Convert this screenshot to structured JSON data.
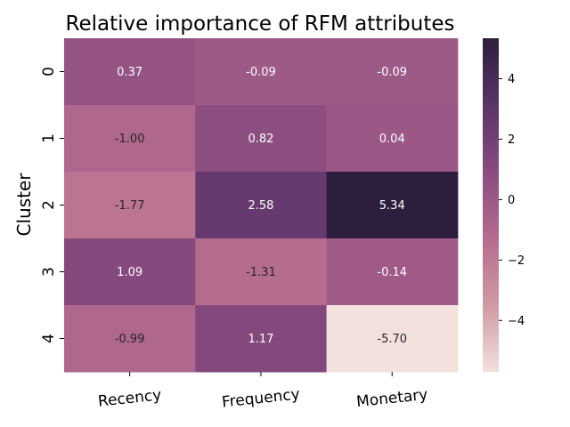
{
  "chart_data": {
    "type": "heatmap",
    "title": "Relative importance of RFM attributes",
    "xlabel": "",
    "ylabel": "Cluster",
    "columns": [
      "Recency",
      "Frequency",
      "Monetary"
    ],
    "rows": [
      "0",
      "1",
      "2",
      "3",
      "4"
    ],
    "values": [
      [
        0.37,
        -0.09,
        -0.09
      ],
      [
        -1.0,
        0.82,
        0.04
      ],
      [
        -1.77,
        2.58,
        5.34
      ],
      [
        1.09,
        -1.31,
        -0.14
      ],
      [
        -0.99,
        1.17,
        -5.7
      ]
    ],
    "value_labels": [
      [
        "0.37",
        "-0.09",
        "-0.09"
      ],
      [
        "-1.00",
        "0.82",
        "0.04"
      ],
      [
        "-1.77",
        "2.58",
        "5.34"
      ],
      [
        "1.09",
        "-1.31",
        "-0.14"
      ],
      [
        "-0.99",
        "1.17",
        "-5.70"
      ]
    ],
    "colorbar": {
      "vmin": -5.7,
      "vmax": 5.34,
      "ticks": [
        4,
        2,
        0,
        -2,
        -4
      ],
      "tick_labels": [
        "4",
        "2",
        "0",
        "−2",
        "−4"
      ]
    },
    "colormap": [
      "#f2e1dc",
      "#d09aa1",
      "#b56b8f",
      "#8a4b80",
      "#5a3468",
      "#2d1e3e"
    ],
    "x_tick_rotation": "slight-counterclockwise",
    "y_tick_rotation": "vertical",
    "grid": false
  }
}
